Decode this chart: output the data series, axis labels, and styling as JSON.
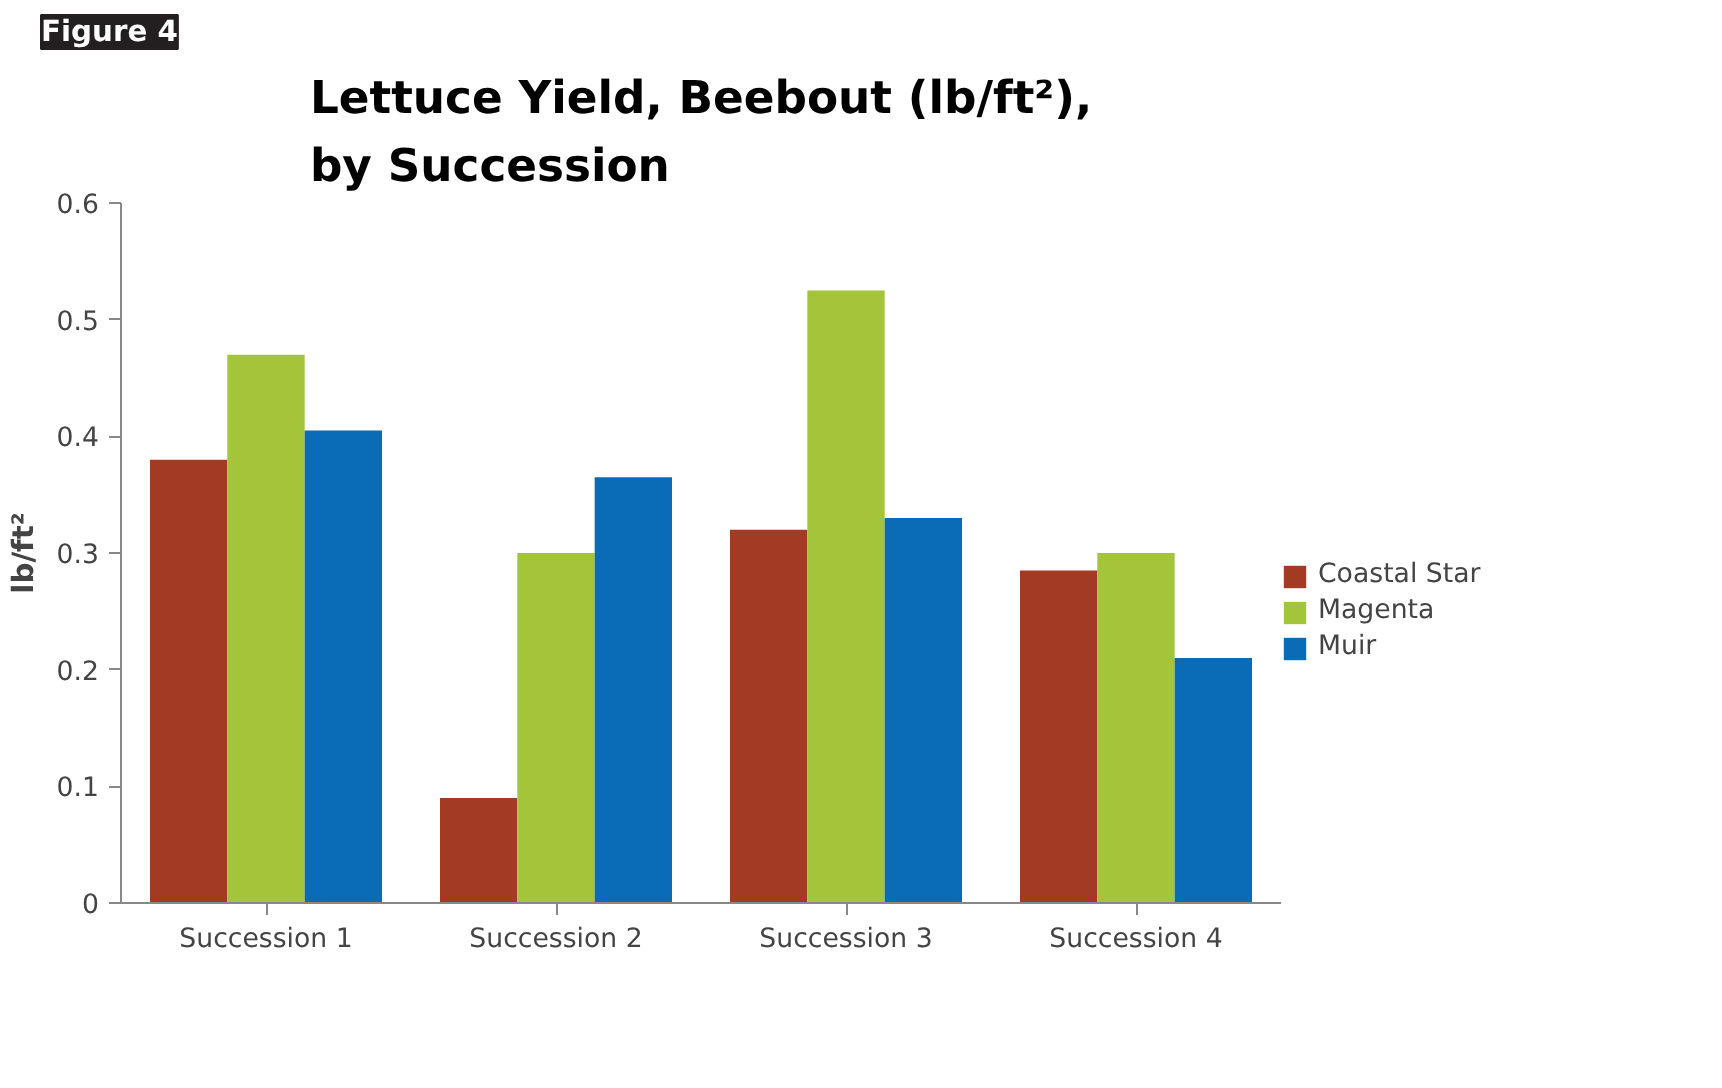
{
  "chart_data": {
    "type": "bar",
    "title": "Lettuce Yield, Beebout (lb/ft²), by Succession",
    "ylabel": "lb/ft²",
    "annotations": [
      "Figure 4"
    ],
    "categories": [
      "Succession 1",
      "Succession 2",
      "Succession 3",
      "Succession 4"
    ],
    "series": [
      {
        "name": "Coastal Star",
        "color": "#a33b24",
        "values": [
          0.38,
          0.09,
          0.32,
          0.285
        ]
      },
      {
        "name": "Magenta",
        "color": "#a4c43a",
        "values": [
          0.47,
          0.3,
          0.525,
          0.3
        ]
      },
      {
        "name": "Muir",
        "color": "#0a6bb6",
        "values": [
          0.405,
          0.365,
          0.33,
          0.21
        ]
      }
    ],
    "ylim": [
      0,
      0.6
    ],
    "yticks": [
      0,
      0.1,
      0.2,
      0.3,
      0.4,
      0.5,
      0.6
    ],
    "grid": false,
    "legend": "right"
  }
}
